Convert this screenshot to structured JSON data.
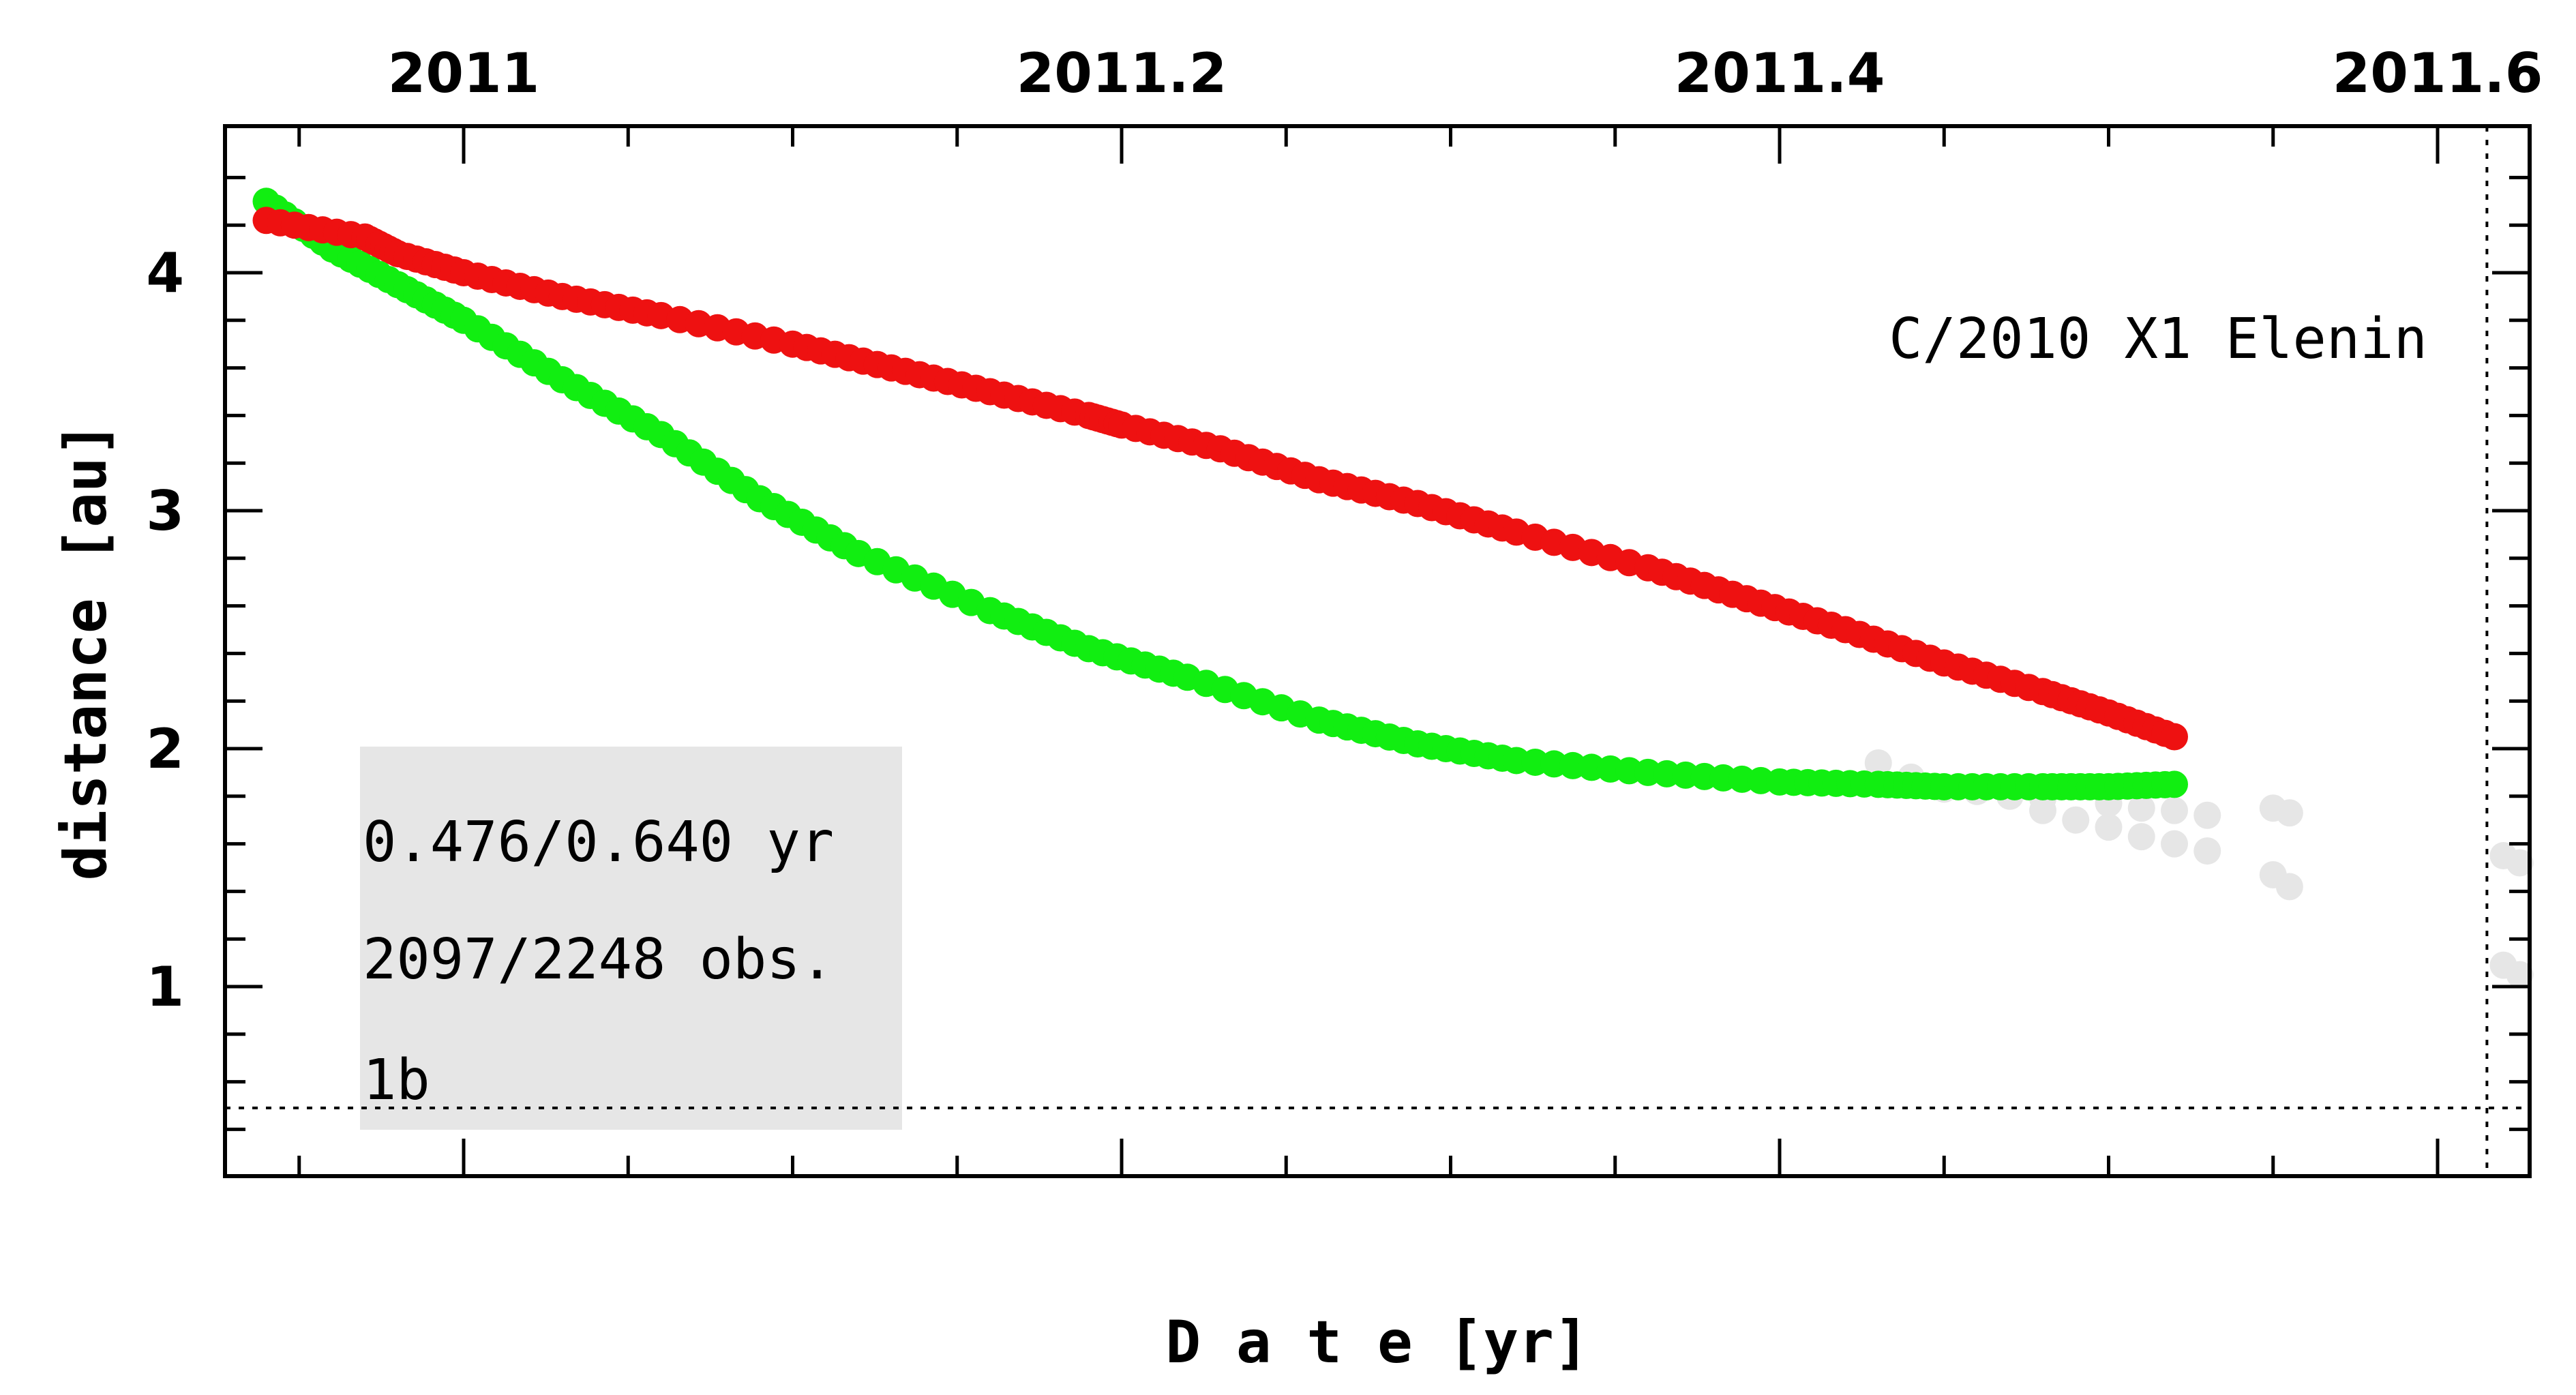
{
  "chart_data": {
    "type": "scatter",
    "title": "C/2010 X1 Elenin",
    "xlabel": "D a t e [yr]",
    "ylabel": "distance [au]",
    "xlim": [
      2010.93,
      2011.63
    ],
    "ylim": [
      0.2,
      4.55
    ],
    "x_ticks": [
      2011,
      2011.2,
      2011.4,
      2011.6
    ],
    "x_tick_labels": [
      "2011",
      "2011.2",
      "2011.4",
      "2011.6"
    ],
    "y_ticks": [
      1,
      2,
      3,
      4
    ],
    "y_tick_labels": [
      "1",
      "2",
      "3",
      "4"
    ],
    "x_minor_step": 0.05,
    "y_minor_step": 0.2,
    "grid": false,
    "reference_lines": {
      "vertical_x": 2011.615,
      "horizontal_y": 0.49
    },
    "info_box": [
      "0.476/0.640 yr",
      "2097/2248 obs.",
      "1b"
    ],
    "colors": {
      "red": "#ee1111",
      "green": "#11ee11",
      "gray": "#e6e6e6",
      "box": "#e6e6e6"
    },
    "series": [
      {
        "color": "red",
        "points": [
          [
            2010.94,
            4.22
          ],
          [
            2010.97,
            4.15
          ],
          [
            2010.98,
            4.08
          ],
          [
            2011.0,
            4.0
          ],
          [
            2011.03,
            3.9
          ],
          [
            2011.06,
            3.82
          ],
          [
            2011.1,
            3.7
          ],
          [
            2011.13,
            3.6
          ],
          [
            2011.16,
            3.5
          ],
          [
            2011.19,
            3.4
          ],
          [
            2011.2,
            3.36
          ],
          [
            2011.23,
            3.26
          ],
          [
            2011.26,
            3.13
          ],
          [
            2011.29,
            3.03
          ],
          [
            2011.32,
            2.91
          ],
          [
            2011.36,
            2.76
          ],
          [
            2011.39,
            2.63
          ],
          [
            2011.42,
            2.5
          ],
          [
            2011.45,
            2.36
          ],
          [
            2011.48,
            2.24
          ],
          [
            2011.5,
            2.15
          ],
          [
            2011.52,
            2.05
          ]
        ]
      },
      {
        "color": "green",
        "points": [
          [
            2010.94,
            4.3
          ],
          [
            2010.96,
            4.1
          ],
          [
            2010.98,
            3.95
          ],
          [
            2011.0,
            3.8
          ],
          [
            2011.03,
            3.55
          ],
          [
            2011.06,
            3.32
          ],
          [
            2011.09,
            3.05
          ],
          [
            2011.12,
            2.82
          ],
          [
            2011.16,
            2.58
          ],
          [
            2011.19,
            2.42
          ],
          [
            2011.22,
            2.3
          ],
          [
            2011.26,
            2.12
          ],
          [
            2011.29,
            2.02
          ],
          [
            2011.32,
            1.95
          ],
          [
            2011.36,
            1.9
          ],
          [
            2011.4,
            1.86
          ],
          [
            2011.43,
            1.85
          ],
          [
            2011.45,
            1.84
          ],
          [
            2011.48,
            1.84
          ],
          [
            2011.5,
            1.84
          ],
          [
            2011.52,
            1.85
          ]
        ]
      },
      {
        "color": "gray",
        "points": [
          [
            2011.43,
            1.94
          ],
          [
            2011.44,
            1.88
          ],
          [
            2011.45,
            1.83
          ],
          [
            2011.46,
            1.82
          ],
          [
            2011.47,
            1.8
          ],
          [
            2011.48,
            1.79
          ],
          [
            2011.5,
            1.77
          ],
          [
            2011.51,
            1.75
          ],
          [
            2011.52,
            1.74
          ],
          [
            2011.53,
            1.72
          ],
          [
            2011.48,
            1.74
          ],
          [
            2011.49,
            1.7
          ],
          [
            2011.5,
            1.67
          ],
          [
            2011.51,
            1.63
          ],
          [
            2011.52,
            1.6
          ],
          [
            2011.53,
            1.57
          ],
          [
            2011.55,
            1.75
          ],
          [
            2011.555,
            1.73
          ],
          [
            2011.55,
            1.47
          ],
          [
            2011.555,
            1.42
          ],
          [
            2011.62,
            1.55
          ],
          [
            2011.625,
            1.52
          ],
          [
            2011.62,
            1.09
          ],
          [
            2011.625,
            1.05
          ]
        ]
      }
    ]
  }
}
